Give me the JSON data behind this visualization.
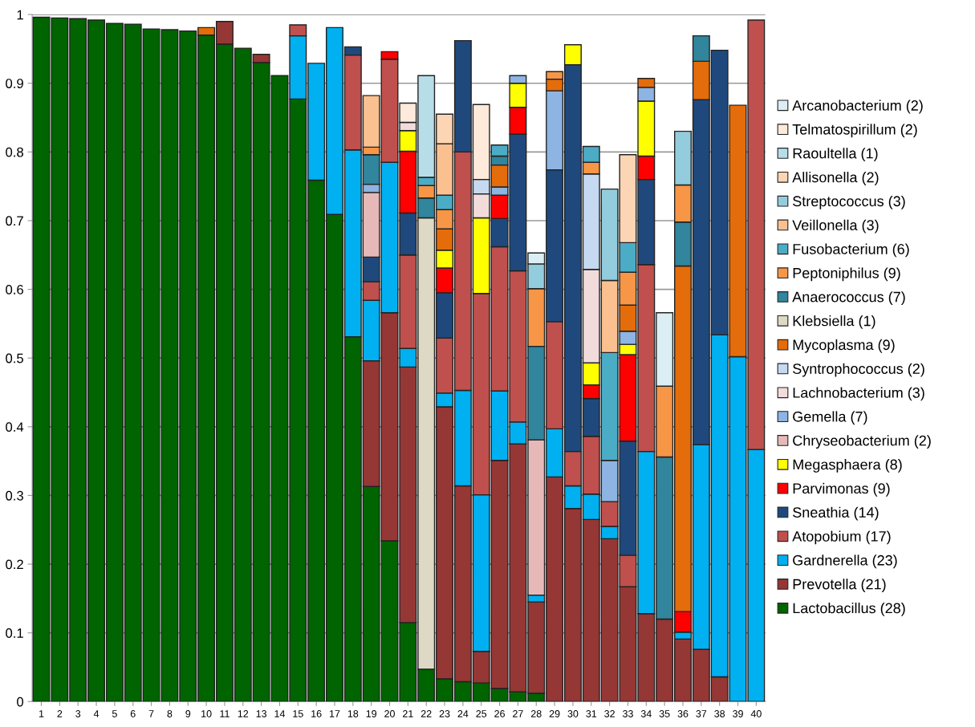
{
  "chart_data": {
    "type": "bar",
    "stacked": true,
    "grid": "y",
    "legend": "right",
    "categories": [
      "1",
      "2",
      "3",
      "4",
      "5",
      "6",
      "7",
      "8",
      "9",
      "10",
      "11",
      "12",
      "13",
      "14",
      "15",
      "16",
      "17",
      "18",
      "19",
      "20",
      "21",
      "22",
      "23",
      "24",
      "25",
      "26",
      "27",
      "28",
      "29",
      "30",
      "31",
      "32",
      "33",
      "34",
      "35",
      "36",
      "37",
      "38",
      "39",
      "40"
    ],
    "ylim": [
      0,
      1
    ],
    "yticks": [
      0,
      0.1,
      0.2,
      0.3,
      0.4,
      0.5,
      0.6,
      0.7,
      0.8,
      0.9,
      1
    ],
    "series": [
      {
        "name": "Lactobacillus (28)",
        "color": "#006400",
        "values": [
          0.996,
          0.995,
          0.994,
          0.992,
          0.987,
          0.986,
          0.979,
          0.978,
          0.976,
          0.97,
          0.957,
          0.951,
          0.93,
          0.911,
          0.877,
          0.759,
          0.709,
          0.531,
          0.313,
          0.234,
          0.115,
          0.047,
          0.033,
          0.029,
          0.027,
          0.019,
          0.014,
          0.012,
          null,
          null,
          null,
          null,
          null,
          null,
          null,
          null,
          null,
          null,
          null,
          null
        ]
      },
      {
        "name": "Prevotella (21)",
        "color": "#953735",
        "values": [
          null,
          null,
          null,
          null,
          null,
          null,
          null,
          null,
          null,
          null,
          0.033,
          null,
          0.012,
          null,
          null,
          null,
          null,
          null,
          0.183,
          0.332,
          0.372,
          null,
          0.396,
          0.285,
          0.046,
          0.332,
          0.361,
          0.133,
          0.327,
          0.281,
          0.265,
          0.237,
          0.167,
          0.128,
          0.12,
          0.091,
          0.076,
          0.036,
          null,
          null
        ]
      },
      {
        "name": "Gardnerella (23)",
        "color": "#00b0f0",
        "values": [
          null,
          null,
          null,
          null,
          null,
          null,
          null,
          null,
          null,
          null,
          null,
          null,
          null,
          null,
          0.092,
          0.17,
          0.272,
          0.272,
          0.088,
          0.219,
          0.027,
          null,
          0.02,
          0.139,
          0.228,
          0.101,
          0.032,
          0.01,
          0.07,
          0.033,
          0.037,
          0.018,
          null,
          0.236,
          null,
          0.01,
          0.298,
          0.498,
          0.502,
          0.367
        ]
      },
      {
        "name": "Atopobium (17)",
        "color": "#c0504d",
        "values": [
          null,
          null,
          null,
          null,
          null,
          null,
          null,
          null,
          null,
          null,
          null,
          null,
          null,
          null,
          0.016,
          null,
          null,
          0.138,
          0.027,
          0.15,
          0.136,
          null,
          0.08,
          0.347,
          0.293,
          0.21,
          0.22,
          null,
          0.156,
          0.05,
          0.084,
          0.036,
          0.046,
          0.272,
          null,
          null,
          null,
          null,
          null,
          0.625
        ]
      },
      {
        "name": "Sneathia (14)",
        "color": "#1f497d",
        "values": [
          null,
          null,
          null,
          null,
          null,
          null,
          null,
          null,
          null,
          null,
          null,
          null,
          null,
          null,
          null,
          null,
          null,
          0.012,
          0.036,
          null,
          0.061,
          null,
          0.066,
          0.162,
          null,
          0.041,
          0.199,
          null,
          0.221,
          0.563,
          0.055,
          null,
          0.166,
          0.124,
          null,
          null,
          0.502,
          0.414,
          null,
          null
        ]
      },
      {
        "name": "Parvimonas (9)",
        "color": "#ff0000",
        "values": [
          null,
          null,
          null,
          null,
          null,
          null,
          null,
          null,
          null,
          null,
          null,
          null,
          null,
          null,
          null,
          null,
          null,
          null,
          null,
          0.011,
          0.09,
          null,
          0.036,
          null,
          null,
          0.034,
          0.039,
          null,
          null,
          null,
          0.02,
          null,
          0.126,
          0.034,
          null,
          0.03,
          null,
          null,
          null,
          null
        ]
      },
      {
        "name": "Megasphaera (8)",
        "color": "#ffff00",
        "values": [
          null,
          null,
          null,
          null,
          null,
          null,
          null,
          null,
          null,
          null,
          null,
          null,
          null,
          null,
          null,
          null,
          null,
          null,
          null,
          null,
          0.03,
          null,
          0.026,
          null,
          0.11,
          null,
          0.035,
          null,
          null,
          0.029,
          0.032,
          null,
          0.015,
          0.08,
          null,
          null,
          null,
          null,
          null,
          null
        ]
      },
      {
        "name": "Chryseobacterium (2)",
        "color": "#e6b9b8",
        "values": [
          null,
          null,
          null,
          null,
          null,
          null,
          null,
          null,
          null,
          null,
          null,
          null,
          null,
          null,
          null,
          null,
          null,
          null,
          0.094,
          null,
          null,
          null,
          null,
          null,
          null,
          null,
          null,
          0.226,
          null,
          null,
          null,
          null,
          null,
          null,
          null,
          null,
          null,
          null,
          null,
          null
        ]
      },
      {
        "name": "Gemella (7)",
        "color": "#8db4e2",
        "values": [
          null,
          null,
          null,
          null,
          null,
          null,
          null,
          null,
          null,
          null,
          null,
          null,
          null,
          null,
          null,
          null,
          null,
          null,
          0.012,
          null,
          null,
          null,
          null,
          null,
          null,
          0.012,
          0.011,
          null,
          0.115,
          null,
          null,
          0.06,
          0.019,
          0.02,
          null,
          null,
          null,
          null,
          null,
          null
        ]
      },
      {
        "name": "Lachnobacterium (3)",
        "color": "#f2dcdb",
        "values": [
          null,
          null,
          null,
          null,
          null,
          null,
          null,
          null,
          null,
          null,
          null,
          null,
          null,
          null,
          null,
          null,
          null,
          null,
          null,
          null,
          0.012,
          null,
          null,
          null,
          0.035,
          null,
          null,
          null,
          null,
          null,
          0.136,
          null,
          null,
          null,
          null,
          null,
          null,
          null,
          null,
          null
        ]
      },
      {
        "name": "Syntrophococcus (2)",
        "color": "#c5d9f1",
        "values": [
          null,
          null,
          null,
          null,
          null,
          null,
          null,
          null,
          null,
          null,
          null,
          null,
          null,
          null,
          null,
          null,
          null,
          null,
          null,
          null,
          null,
          null,
          null,
          null,
          0.021,
          null,
          null,
          null,
          null,
          null,
          0.139,
          null,
          null,
          null,
          null,
          null,
          null,
          null,
          null,
          null
        ]
      },
      {
        "name": "Mycoplasma (9)",
        "color": "#e46c0a",
        "values": [
          null,
          null,
          null,
          null,
          null,
          null,
          null,
          null,
          null,
          0.011,
          null,
          null,
          null,
          null,
          null,
          null,
          null,
          null,
          null,
          null,
          null,
          null,
          0.031,
          null,
          null,
          0.032,
          null,
          null,
          0.017,
          null,
          null,
          null,
          0.038,
          0.013,
          null,
          0.503,
          0.056,
          null,
          0.366,
          null
        ]
      },
      {
        "name": "Klebsiella (1)",
        "color": "#ddd9c4",
        "values": [
          null,
          null,
          null,
          null,
          null,
          null,
          null,
          null,
          null,
          null,
          null,
          null,
          null,
          null,
          null,
          null,
          null,
          null,
          null,
          null,
          null,
          0.657,
          null,
          null,
          null,
          null,
          null,
          null,
          null,
          null,
          null,
          null,
          null,
          null,
          null,
          null,
          null,
          null,
          null,
          null
        ]
      },
      {
        "name": "Anaerococcus (7)",
        "color": "#31859c",
        "values": [
          null,
          null,
          null,
          null,
          null,
          null,
          null,
          null,
          null,
          null,
          null,
          null,
          null,
          null,
          null,
          null,
          null,
          null,
          0.043,
          null,
          null,
          0.029,
          null,
          null,
          null,
          0.013,
          null,
          0.136,
          null,
          null,
          null,
          null,
          null,
          null,
          0.236,
          0.064,
          0.037,
          null,
          null,
          null
        ]
      },
      {
        "name": "Peptoniphilus (9)",
        "color": "#f79646",
        "values": [
          null,
          null,
          null,
          null,
          null,
          null,
          null,
          null,
          null,
          null,
          null,
          null,
          null,
          null,
          null,
          null,
          null,
          null,
          0.011,
          null,
          null,
          0.018,
          0.028,
          null,
          null,
          null,
          null,
          0.084,
          0.011,
          null,
          0.017,
          null,
          0.048,
          null,
          0.103,
          0.054,
          null,
          null,
          null,
          null
        ]
      },
      {
        "name": "Fusobacterium (6)",
        "color": "#4bacc6",
        "values": [
          null,
          null,
          null,
          null,
          null,
          null,
          null,
          null,
          null,
          null,
          null,
          null,
          null,
          null,
          null,
          null,
          null,
          null,
          null,
          null,
          null,
          0.012,
          0.021,
          null,
          null,
          0.016,
          null,
          null,
          null,
          null,
          0.023,
          0.157,
          0.043,
          null,
          null,
          null,
          null,
          null,
          null,
          null
        ]
      },
      {
        "name": "Veillonella (3)",
        "color": "#fac090",
        "values": [
          null,
          null,
          null,
          null,
          null,
          null,
          null,
          null,
          null,
          null,
          null,
          null,
          null,
          null,
          null,
          null,
          null,
          null,
          0.075,
          null,
          null,
          null,
          0.075,
          null,
          null,
          null,
          null,
          null,
          null,
          null,
          null,
          0.105,
          null,
          null,
          null,
          null,
          null,
          null,
          null,
          null
        ]
      },
      {
        "name": "Streptococcus (3)",
        "color": "#93cddd",
        "values": [
          null,
          null,
          null,
          null,
          null,
          null,
          null,
          null,
          null,
          null,
          null,
          null,
          null,
          null,
          null,
          null,
          null,
          null,
          null,
          null,
          null,
          null,
          null,
          null,
          null,
          null,
          null,
          0.036,
          null,
          null,
          null,
          0.133,
          null,
          null,
          null,
          0.078,
          null,
          null,
          null,
          null
        ]
      },
      {
        "name": "Allisonella (2)",
        "color": "#fcd5b5",
        "values": [
          null,
          null,
          null,
          null,
          null,
          null,
          null,
          null,
          null,
          null,
          null,
          null,
          null,
          null,
          null,
          null,
          null,
          null,
          null,
          null,
          null,
          null,
          0.043,
          null,
          null,
          null,
          null,
          null,
          null,
          null,
          null,
          null,
          0.128,
          null,
          null,
          null,
          null,
          null,
          null,
          null
        ]
      },
      {
        "name": "Raoultella (1)",
        "color": "#b7dee8",
        "values": [
          null,
          null,
          null,
          null,
          null,
          null,
          null,
          null,
          null,
          null,
          null,
          null,
          null,
          null,
          null,
          null,
          null,
          null,
          null,
          null,
          null,
          0.148,
          null,
          null,
          null,
          null,
          null,
          null,
          null,
          null,
          null,
          null,
          null,
          null,
          null,
          null,
          null,
          null,
          null,
          null
        ]
      },
      {
        "name": "Telmatospirillum (2)",
        "color": "#fdeada",
        "values": [
          null,
          null,
          null,
          null,
          null,
          null,
          null,
          null,
          null,
          null,
          null,
          null,
          null,
          null,
          null,
          null,
          null,
          null,
          null,
          null,
          0.028,
          null,
          null,
          null,
          0.109,
          null,
          null,
          null,
          null,
          null,
          null,
          null,
          null,
          null,
          null,
          null,
          null,
          null,
          null,
          null
        ]
      },
      {
        "name": "Arcanobacterium (2)",
        "color": "#dbeef4",
        "values": [
          null,
          null,
          null,
          null,
          null,
          null,
          null,
          null,
          null,
          null,
          null,
          null,
          null,
          null,
          null,
          null,
          null,
          null,
          null,
          null,
          null,
          null,
          null,
          null,
          null,
          null,
          null,
          0.016,
          null,
          null,
          null,
          null,
          null,
          null,
          0.107,
          null,
          null,
          null,
          null,
          null
        ]
      }
    ]
  }
}
